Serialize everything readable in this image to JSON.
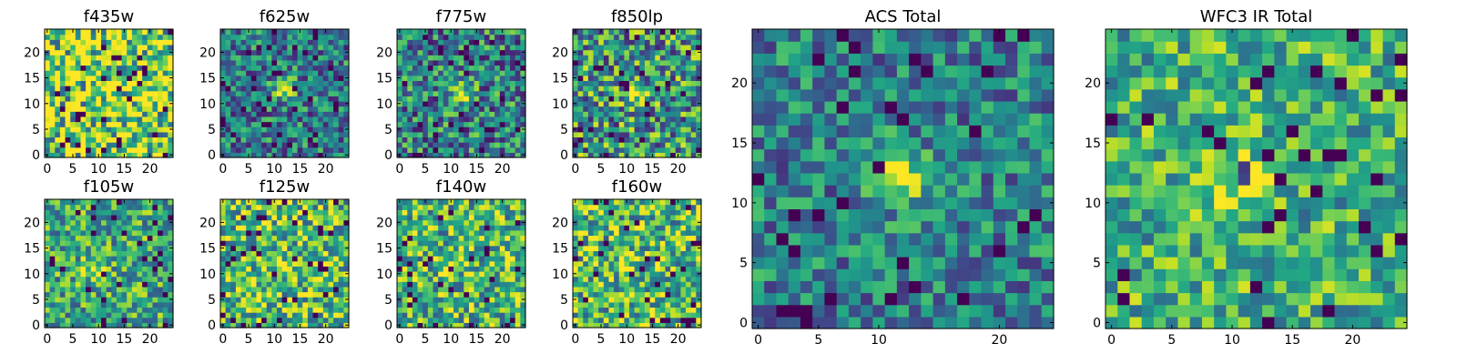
{
  "chart_data": [
    {
      "type": "heatmap",
      "title": "f435w",
      "colormap": "viridis",
      "grid": false,
      "x_range": [
        0,
        24
      ],
      "y_range": [
        0,
        24
      ],
      "x_ticks": [
        0,
        5,
        10,
        15,
        20
      ],
      "y_ticks": [
        0,
        5,
        10,
        15,
        20
      ],
      "size": 25,
      "source_peak": [
        12,
        12
      ],
      "noise_level": 0.55,
      "peak_level": 0.05,
      "base_level": 0.78,
      "seed": 11
    },
    {
      "type": "heatmap",
      "title": "f625w",
      "colormap": "viridis",
      "grid": false,
      "x_range": [
        0,
        24
      ],
      "y_range": [
        0,
        24
      ],
      "x_ticks": [
        0,
        5,
        10,
        15,
        20
      ],
      "y_ticks": [
        0,
        5,
        10,
        15,
        20
      ],
      "size": 25,
      "source_peak": [
        12,
        13
      ],
      "noise_level": 0.35,
      "peak_level": 0.55,
      "base_level": 0.4,
      "seed": 23
    },
    {
      "type": "heatmap",
      "title": "f775w",
      "colormap": "viridis",
      "grid": false,
      "x_range": [
        0,
        24
      ],
      "y_range": [
        0,
        24
      ],
      "x_ticks": [
        0,
        5,
        10,
        15,
        20
      ],
      "y_ticks": [
        0,
        5,
        10,
        15,
        20
      ],
      "size": 25,
      "source_peak": [
        12,
        12
      ],
      "noise_level": 0.4,
      "peak_level": 0.5,
      "base_level": 0.42,
      "seed": 37
    },
    {
      "type": "heatmap",
      "title": "f850lp",
      "colormap": "viridis",
      "grid": false,
      "x_range": [
        0,
        24
      ],
      "y_range": [
        0,
        24
      ],
      "x_ticks": [
        0,
        5,
        10,
        15,
        20
      ],
      "y_ticks": [
        0,
        5,
        10,
        15,
        20
      ],
      "size": 25,
      "source_peak": [
        12,
        12
      ],
      "noise_level": 0.45,
      "peak_level": 0.4,
      "base_level": 0.5,
      "seed": 41
    },
    {
      "type": "heatmap",
      "title": "f105w",
      "colormap": "viridis",
      "grid": false,
      "x_range": [
        0,
        24
      ],
      "y_range": [
        0,
        24
      ],
      "x_ticks": [
        0,
        5,
        10,
        15,
        20
      ],
      "y_ticks": [
        0,
        5,
        10,
        15,
        20
      ],
      "size": 25,
      "source_peak": [
        9,
        11
      ],
      "noise_level": 0.35,
      "peak_level": 0.35,
      "base_level": 0.58,
      "seed": 53
    },
    {
      "type": "heatmap",
      "title": "f125w",
      "colormap": "viridis",
      "grid": false,
      "x_range": [
        0,
        24
      ],
      "y_range": [
        0,
        24
      ],
      "x_ticks": [
        0,
        5,
        10,
        15,
        20
      ],
      "y_ticks": [
        0,
        5,
        10,
        15,
        20
      ],
      "size": 25,
      "source_peak": [
        10,
        12
      ],
      "noise_level": 0.4,
      "peak_level": 0.2,
      "base_level": 0.66,
      "seed": 67
    },
    {
      "type": "heatmap",
      "title": "f140w",
      "colormap": "viridis",
      "grid": false,
      "x_range": [
        0,
        24
      ],
      "y_range": [
        0,
        24
      ],
      "x_ticks": [
        0,
        5,
        10,
        15,
        20
      ],
      "y_ticks": [
        0,
        5,
        10,
        15,
        20
      ],
      "size": 25,
      "source_peak": [
        10,
        12
      ],
      "noise_level": 0.4,
      "peak_level": 0.25,
      "base_level": 0.64,
      "seed": 79
    },
    {
      "type": "heatmap",
      "title": "f160w",
      "colormap": "viridis",
      "grid": false,
      "x_range": [
        0,
        24
      ],
      "y_range": [
        0,
        24
      ],
      "x_ticks": [
        0,
        5,
        10,
        15,
        20
      ],
      "y_ticks": [
        0,
        5,
        10,
        15,
        20
      ],
      "size": 25,
      "source_peak": [
        10,
        12
      ],
      "noise_level": 0.42,
      "peak_level": 0.25,
      "base_level": 0.66,
      "seed": 83
    },
    {
      "type": "heatmap",
      "title": "ACS Total",
      "colormap": "viridis",
      "grid": false,
      "x_range": [
        0,
        24
      ],
      "y_range": [
        0,
        24
      ],
      "x_ticks": [
        0,
        10,
        20
      ],
      "x_minor_ticks": [
        5
      ],
      "y_ticks": [
        0,
        5,
        10,
        15,
        20
      ],
      "size": 25,
      "source_peak": [
        12,
        12
      ],
      "noise_level": 0.3,
      "peak_level": 0.55,
      "base_level": 0.42,
      "seed": 97
    },
    {
      "type": "heatmap",
      "title": "WFC3 IR Total",
      "colormap": "viridis",
      "grid": false,
      "x_range": [
        0,
        24
      ],
      "y_range": [
        0,
        24
      ],
      "x_ticks": [
        0,
        5,
        10,
        15,
        20
      ],
      "y_ticks": [
        0,
        5,
        10,
        15,
        20
      ],
      "size": 25,
      "source_peak": [
        11,
        12
      ],
      "noise_level": 0.32,
      "peak_level": 0.35,
      "base_level": 0.62,
      "seed": 101
    }
  ]
}
